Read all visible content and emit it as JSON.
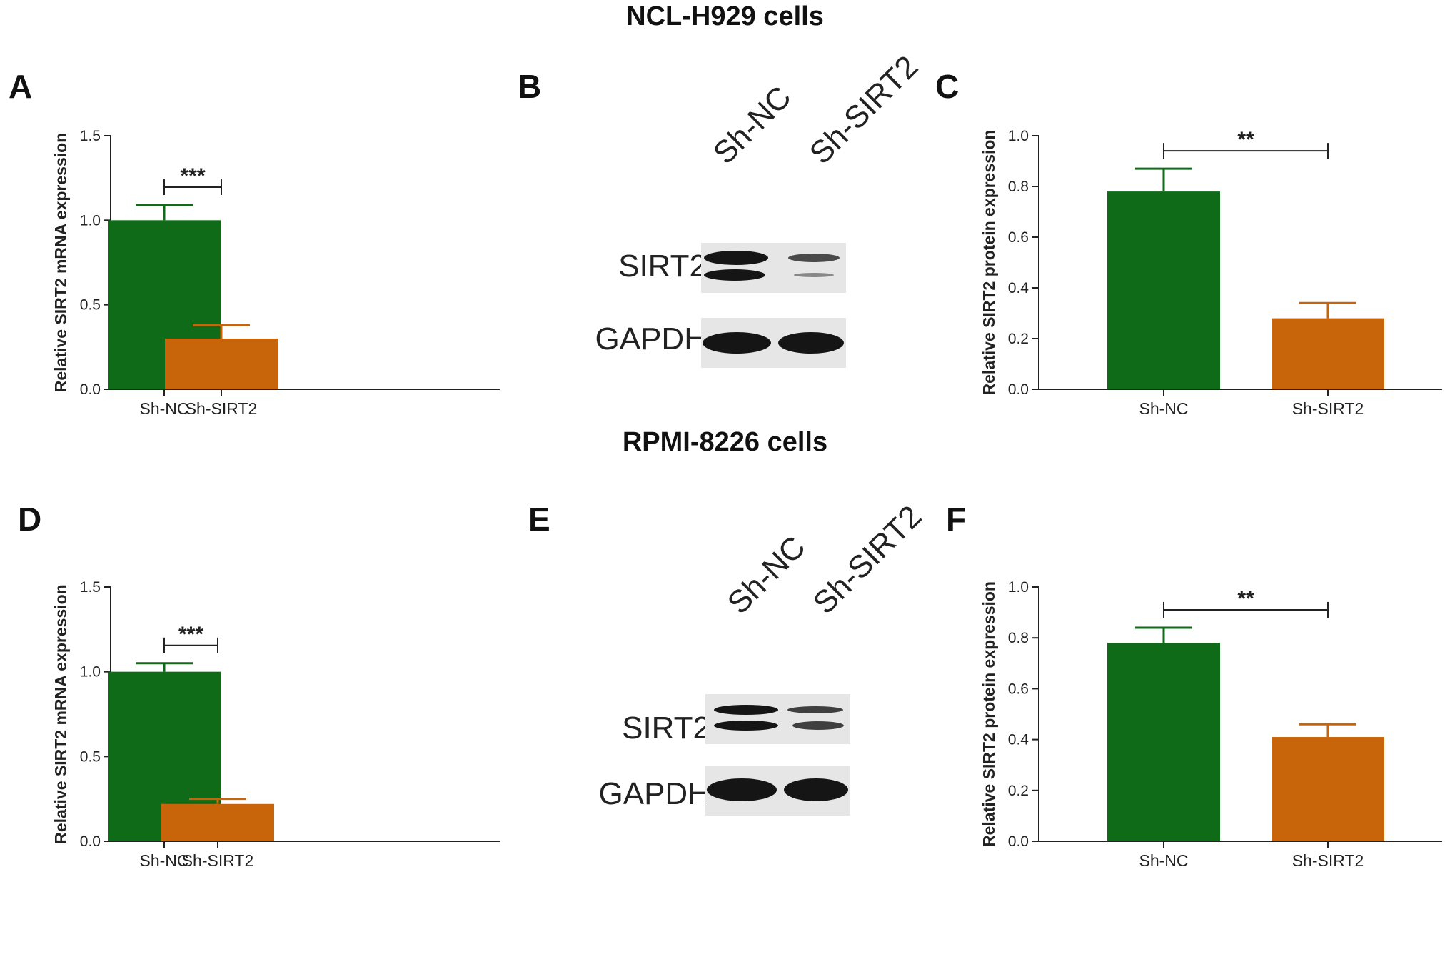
{
  "section_titles": [
    "NCL-H929 cells",
    "RPMI-8226 cells"
  ],
  "panels": [
    {
      "letter": "A",
      "kind": "chart",
      "chart_index": 0
    },
    {
      "letter": "B",
      "kind": "blot",
      "blot_index": 0
    },
    {
      "letter": "C",
      "kind": "chart",
      "chart_index": 1
    },
    {
      "letter": "D",
      "kind": "chart",
      "chart_index": 2
    },
    {
      "letter": "E",
      "kind": "blot",
      "blot_index": 1
    },
    {
      "letter": "F",
      "kind": "chart",
      "chart_index": 3
    }
  ],
  "blots": [
    {
      "lanes": [
        "Sh-NC",
        "Sh-SIRT2"
      ],
      "rows": [
        {
          "label": "SIRT2",
          "band_intensity": [
            1.0,
            0.45
          ]
        },
        {
          "label": "GAPDH",
          "band_intensity": [
            1.0,
            1.0
          ]
        }
      ]
    },
    {
      "lanes": [
        "Sh-NC",
        "Sh-SIRT2"
      ],
      "rows": [
        {
          "label": "SIRT2",
          "band_intensity": [
            1.0,
            0.6
          ]
        },
        {
          "label": "GAPDH",
          "band_intensity": [
            1.0,
            1.0
          ]
        }
      ]
    }
  ],
  "colors": {
    "sh_nc": "#0f6b17",
    "sh_sirt2": "#c8650a"
  },
  "chart_data": [
    {
      "type": "bar",
      "categories": [
        "Sh-NC",
        "Sh-SIRT2"
      ],
      "values": [
        1.0,
        0.3
      ],
      "errors": [
        0.09,
        0.08
      ],
      "ylabel": "Relative SIRT2 mRNA expression",
      "ylim": [
        0,
        1.5
      ],
      "yticks": [
        "0.0",
        "0.5",
        "1.0",
        "1.5"
      ],
      "significance": "***",
      "grid": false
    },
    {
      "type": "bar",
      "categories": [
        "Sh-NC",
        "Sh-SIRT2"
      ],
      "values": [
        0.78,
        0.28
      ],
      "errors": [
        0.09,
        0.06
      ],
      "ylabel": "Relative SIRT2 protein expression",
      "ylim": [
        0,
        1.0
      ],
      "yticks": [
        "0.0",
        "0.2",
        "0.4",
        "0.6",
        "0.8",
        "1.0"
      ],
      "significance": "**",
      "grid": false
    },
    {
      "type": "bar",
      "categories": [
        "Sh-NC",
        "Sh-SIRT2"
      ],
      "values": [
        1.0,
        0.22
      ],
      "errors": [
        0.05,
        0.03
      ],
      "ylabel": "Relative SIRT2 mRNA expression",
      "ylim": [
        0,
        1.5
      ],
      "yticks": [
        "0.0",
        "0.5",
        "1.0",
        "1.5"
      ],
      "significance": "***",
      "grid": false
    },
    {
      "type": "bar",
      "categories": [
        "Sh-NC",
        "Sh-SIRT2"
      ],
      "values": [
        0.78,
        0.41
      ],
      "errors": [
        0.06,
        0.05
      ],
      "ylabel": "Relative SIRT2 protein expression",
      "ylim": [
        0,
        1.0
      ],
      "yticks": [
        "0.0",
        "0.2",
        "0.4",
        "0.6",
        "0.8",
        "1.0"
      ],
      "significance": "**",
      "grid": false
    }
  ]
}
